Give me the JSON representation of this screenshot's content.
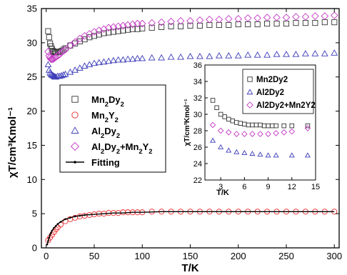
{
  "chart_data": [
    {
      "type": "scatter",
      "xlabel": "T/K",
      "ylabel": "χT/cm³Kmol⁻¹",
      "xlim": [
        -5,
        305
      ],
      "ylim": [
        0,
        35
      ],
      "xticks": [
        0,
        50,
        100,
        150,
        200,
        250,
        300
      ],
      "yticks": [
        0,
        5,
        10,
        15,
        20,
        25,
        30,
        35
      ],
      "legend_position": "middle-left",
      "series": [
        {
          "name": "Mn2Dy2",
          "marker": "square",
          "color": "#333333",
          "x": [
            2,
            3,
            4,
            5,
            6,
            7,
            8,
            9,
            10,
            12,
            14,
            16,
            18,
            20,
            25,
            30,
            35,
            40,
            45,
            50,
            55,
            60,
            65,
            70,
            75,
            80,
            85,
            90,
            95,
            100,
            110,
            120,
            130,
            140,
            150,
            160,
            170,
            180,
            190,
            200,
            210,
            220,
            230,
            240,
            250,
            260,
            270,
            280,
            290,
            300
          ],
          "y": [
            31.7,
            30.8,
            29.9,
            29.5,
            29.1,
            28.8,
            28.7,
            28.6,
            28.6,
            28.6,
            28.7,
            28.8,
            29.0,
            29.2,
            29.6,
            29.9,
            30.2,
            30.5,
            30.8,
            31.0,
            31.2,
            31.4,
            31.5,
            31.6,
            31.7,
            31.8,
            31.9,
            32.0,
            32.0,
            32.1,
            32.2,
            32.3,
            32.4,
            32.4,
            32.5,
            32.5,
            32.6,
            32.6,
            32.6,
            32.7,
            32.7,
            32.7,
            32.8,
            32.8,
            32.8,
            32.9,
            32.9,
            32.9,
            33.0,
            33.0
          ]
        },
        {
          "name": "Mn2Y2",
          "marker": "circle",
          "color": "#e8282b",
          "x": [
            2,
            4,
            6,
            8,
            10,
            12,
            15,
            20,
            25,
            30,
            35,
            40,
            45,
            50,
            55,
            60,
            65,
            70,
            75,
            80,
            85,
            90,
            95,
            100,
            110,
            120,
            130,
            140,
            150,
            160,
            170,
            180,
            190,
            200,
            210,
            220,
            230,
            240,
            250,
            260,
            270,
            280,
            290,
            300
          ],
          "y": [
            1.1,
            1.5,
            1.9,
            2.3,
            2.7,
            3.0,
            3.4,
            3.9,
            4.2,
            4.4,
            4.6,
            4.7,
            4.8,
            4.9,
            5.0,
            5.0,
            5.1,
            5.1,
            5.1,
            5.2,
            5.2,
            5.2,
            5.2,
            5.2,
            5.3,
            5.3,
            5.3,
            5.3,
            5.3,
            5.3,
            5.3,
            5.3,
            5.3,
            5.3,
            5.3,
            5.3,
            5.3,
            5.3,
            5.3,
            5.3,
            5.3,
            5.3,
            5.3,
            5.3
          ]
        },
        {
          "name": "Al2Dy2",
          "marker": "triangle",
          "color": "#3a3ab8",
          "x": [
            2,
            3,
            4,
            5,
            6,
            7,
            8,
            9,
            10,
            12,
            14,
            16,
            18,
            20,
            25,
            30,
            35,
            40,
            45,
            50,
            55,
            60,
            65,
            70,
            75,
            80,
            85,
            90,
            95,
            100,
            110,
            120,
            130,
            140,
            150,
            160,
            170,
            180,
            190,
            200,
            210,
            220,
            230,
            240,
            250,
            260,
            270,
            280,
            290,
            300
          ],
          "y": [
            26.8,
            26.0,
            25.6,
            25.4,
            25.3,
            25.2,
            25.1,
            25.0,
            25.0,
            25.1,
            25.1,
            25.2,
            25.3,
            25.4,
            25.7,
            26.0,
            26.3,
            26.6,
            26.8,
            27.0,
            27.1,
            27.2,
            27.3,
            27.4,
            27.5,
            27.5,
            27.6,
            27.6,
            27.7,
            27.7,
            27.8,
            27.8,
            27.9,
            27.9,
            28.0,
            28.0,
            28.0,
            28.1,
            28.1,
            28.1,
            28.2,
            28.2,
            28.2,
            28.3,
            28.3,
            28.3,
            28.4,
            28.4,
            28.4,
            28.5
          ]
        },
        {
          "name": "Al2Dy2+Mn2Y2",
          "marker": "diamond",
          "color": "#c43ac4",
          "x": [
            2,
            3,
            4,
            5,
            6,
            7,
            8,
            9,
            10,
            12,
            14,
            16,
            18,
            20,
            25,
            30,
            35,
            40,
            45,
            50,
            55,
            60,
            65,
            70,
            75,
            80,
            85,
            90,
            95,
            100,
            110,
            120,
            130,
            140,
            150,
            160,
            170,
            180,
            190,
            200,
            210,
            220,
            230,
            240,
            250,
            260,
            270,
            280,
            290,
            300
          ],
          "y": [
            28.7,
            28.1,
            27.8,
            27.6,
            27.6,
            27.6,
            27.7,
            27.8,
            27.9,
            28.1,
            28.3,
            28.6,
            28.8,
            29.0,
            29.6,
            30.1,
            30.6,
            31.0,
            31.3,
            31.6,
            31.8,
            32.0,
            32.2,
            32.3,
            32.4,
            32.5,
            32.6,
            32.7,
            32.8,
            32.8,
            32.9,
            33.0,
            33.1,
            33.2,
            33.2,
            33.3,
            33.4,
            33.4,
            33.5,
            33.5,
            33.6,
            33.6,
            33.7,
            33.7,
            33.7,
            33.8,
            33.8,
            33.9,
            33.9,
            34.0
          ]
        },
        {
          "name": "Fitting",
          "marker": "line",
          "color": "#000000",
          "x": [
            1,
            2,
            3,
            4,
            5,
            6,
            8,
            10,
            12,
            15,
            20,
            25,
            30,
            35,
            40,
            50,
            60,
            70,
            80,
            90,
            100,
            120,
            150,
            200,
            250,
            300
          ],
          "y": [
            0.5,
            1.0,
            1.5,
            1.9,
            2.2,
            2.5,
            2.9,
            3.2,
            3.5,
            3.8,
            4.2,
            4.4,
            4.6,
            4.7,
            4.8,
            4.9,
            5.0,
            5.1,
            5.1,
            5.2,
            5.2,
            5.3,
            5.3,
            5.3,
            5.3,
            5.3
          ]
        }
      ],
      "legend": [
        {
          "key": "Mn2Dy2",
          "sub": [
            "Mn",
            "2",
            "Dy",
            "2"
          ]
        },
        {
          "key": "Mn2Y2",
          "sub": [
            "Mn",
            "2",
            "Y",
            "2"
          ]
        },
        {
          "key": "Al2Dy2",
          "sub": [
            "Al",
            "2",
            "Dy",
            "2"
          ]
        },
        {
          "key": "Al2Dy2+Mn2Y2",
          "sub": [
            "Al",
            "2",
            "Dy",
            "2",
            "+Mn",
            "2",
            "Y",
            "2"
          ]
        },
        {
          "key": "Fitting",
          "sub": [
            "Fitting"
          ]
        }
      ]
    },
    {
      "type": "scatter",
      "xlabel": "T/K",
      "ylabel": "χT/cm³Kmol⁻¹",
      "xlim": [
        1,
        15
      ],
      "ylim": [
        22,
        36
      ],
      "xticks": [
        3,
        6,
        9,
        12,
        15
      ],
      "yticks": [
        22,
        24,
        26,
        28,
        30,
        32,
        34,
        36
      ],
      "legend_position": "top-right",
      "series": [
        {
          "name": "Mn2Dy2",
          "marker": "square",
          "color": "#333333",
          "x": [
            2,
            2.5,
            3,
            3.5,
            4,
            4.5,
            5,
            5.5,
            6,
            6.5,
            7,
            7.5,
            8,
            8.5,
            9,
            9.5,
            10,
            11,
            12,
            14
          ],
          "y": [
            31.7,
            30.8,
            30.0,
            29.7,
            29.4,
            29.2,
            29.0,
            28.9,
            28.8,
            28.7,
            28.7,
            28.7,
            28.7,
            28.6,
            28.6,
            28.6,
            28.6,
            28.6,
            28.6,
            28.6
          ]
        },
        {
          "name": "Al2Dy2",
          "marker": "triangle",
          "color": "#3a3ab8",
          "x": [
            2,
            3,
            4,
            5,
            6,
            7,
            8,
            9,
            10,
            12,
            14
          ],
          "y": [
            26.8,
            26.0,
            25.6,
            25.4,
            25.3,
            25.2,
            25.1,
            25.0,
            25.0,
            25.0,
            25.0
          ]
        },
        {
          "name": "Al2Dy2+Mn2Y2",
          "marker": "diamond",
          "color": "#c43ac4",
          "x": [
            2,
            3,
            4,
            5,
            6,
            7,
            8,
            9,
            10,
            11,
            12,
            14
          ],
          "y": [
            28.7,
            28.0,
            27.8,
            27.6,
            27.6,
            27.6,
            27.6,
            27.6,
            27.7,
            27.8,
            27.9,
            28.3
          ]
        }
      ],
      "legend": [
        {
          "key": "Mn2Dy2",
          "sub": [
            "Mn",
            "2",
            "Dy",
            "2"
          ]
        },
        {
          "key": "Al2Dy2",
          "sub": [
            "Al",
            "2",
            "Dy",
            "2"
          ]
        },
        {
          "key": "Al2Dy2+Mn2Y2",
          "sub": [
            "Al",
            "2",
            "Dy",
            "2",
            "+Mn",
            "2",
            "Y",
            "2"
          ]
        }
      ]
    }
  ]
}
